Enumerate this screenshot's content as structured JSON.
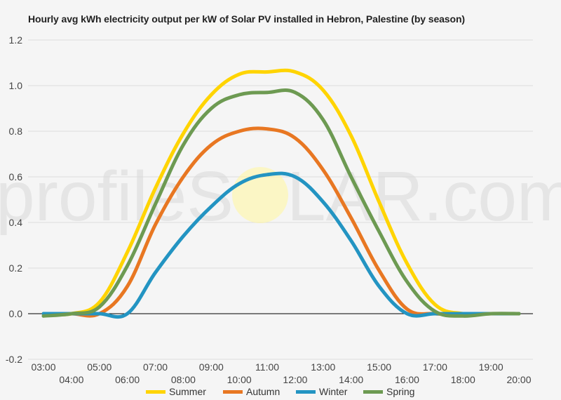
{
  "title": "Hourly avg kWh electricity output per kW of Solar PV installed in Hebron, Palestine (by season)",
  "watermark": {
    "text_left": "profileS",
    "text_right": "LAR.com",
    "sun_color": "#fff59d"
  },
  "colors": {
    "background": "#f5f5f5",
    "grid": "#dddddd",
    "zero_line": "#000000",
    "axis_text": "#444444"
  },
  "chart_data": {
    "type": "line",
    "title": "Hourly avg kWh electricity output per kW of Solar PV installed in Hebron, Palestine (by season)",
    "xlabel": "",
    "ylabel": "",
    "ylim": [
      -0.2,
      1.2
    ],
    "yticks": [
      -0.2,
      0.0,
      0.2,
      0.4,
      0.6,
      0.8,
      1.0,
      1.2
    ],
    "ytick_labels": [
      "-0.2",
      "0.0",
      "0.2",
      "0.4",
      "0.6",
      "0.8",
      "1.0",
      "1.2"
    ],
    "xticks": [
      "03:00",
      "04:00",
      "05:00",
      "06:00",
      "07:00",
      "08:00",
      "09:00",
      "10:00",
      "11:00",
      "12:00",
      "13:00",
      "14:00",
      "15:00",
      "16:00",
      "17:00",
      "18:00",
      "19:00",
      "20:00"
    ],
    "x": [
      "03:00",
      "04:00",
      "05:00",
      "06:00",
      "07:00",
      "08:00",
      "09:00",
      "10:00",
      "11:00",
      "12:00",
      "13:00",
      "14:00",
      "15:00",
      "16:00",
      "17:00",
      "18:00",
      "19:00",
      "20:00"
    ],
    "grid": true,
    "legend_position": "bottom",
    "series": [
      {
        "name": "Summer",
        "color": "#ffd400",
        "values": [
          0,
          0,
          0.05,
          0.27,
          0.55,
          0.79,
          0.96,
          1.05,
          1.06,
          1.06,
          0.98,
          0.78,
          0.49,
          0.22,
          0.04,
          0,
          0,
          0
        ]
      },
      {
        "name": "Autumn",
        "color": "#e87722",
        "values": [
          0,
          0,
          0,
          0.12,
          0.39,
          0.6,
          0.74,
          0.8,
          0.81,
          0.77,
          0.63,
          0.42,
          0.19,
          0.02,
          0,
          0,
          0,
          0
        ]
      },
      {
        "name": "Winter",
        "color": "#2394c2",
        "values": [
          0,
          0,
          0,
          0,
          0.18,
          0.34,
          0.47,
          0.57,
          0.61,
          0.6,
          0.49,
          0.32,
          0.12,
          0,
          0,
          0,
          0,
          0
        ]
      },
      {
        "name": "Spring",
        "color": "#6d9a52",
        "values": [
          -0.01,
          0,
          0.03,
          0.21,
          0.48,
          0.74,
          0.9,
          0.96,
          0.97,
          0.97,
          0.85,
          0.6,
          0.36,
          0.14,
          0.01,
          -0.01,
          0,
          0
        ]
      }
    ]
  }
}
